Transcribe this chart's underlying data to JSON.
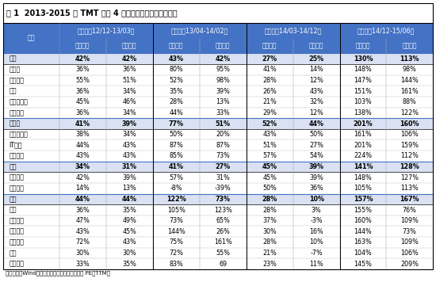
{
  "title": "表 1  2013-2015 年 TMT 板块 4 段行情中估值、盈利的贡献",
  "footnote": "资料来源：Wind，海通证券研究所，注：估值为 PE（TTM）",
  "periods": [
    "第一段（12/12-13/03）",
    "第二段（13/04-14/02）",
    "第三段（14/03-14/12）",
    "第四段（14/12-15/06）"
  ],
  "sub_labels": [
    "指数涨幅",
    "估值涨幅"
  ],
  "rows": [
    {
      "name": "电子",
      "bold": true,
      "shaded": true,
      "values": [
        "42%",
        "42%",
        "43%",
        "42%",
        "27%",
        "25%",
        "130%",
        "113%"
      ]
    },
    {
      "name": "半导体",
      "bold": false,
      "shaded": false,
      "values": [
        "36%",
        "36%",
        "80%",
        "95%",
        "41%",
        "14%",
        "148%",
        "98%"
      ]
    },
    {
      "name": "其他电子",
      "bold": false,
      "shaded": false,
      "values": [
        "55%",
        "51%",
        "52%",
        "98%",
        "28%",
        "12%",
        "147%",
        "144%"
      ]
    },
    {
      "name": "元件",
      "bold": false,
      "shaded": false,
      "values": [
        "36%",
        "34%",
        "35%",
        "39%",
        "26%",
        "43%",
        "151%",
        "161%"
      ]
    },
    {
      "name": "光学光电子",
      "bold": false,
      "shaded": false,
      "values": [
        "45%",
        "46%",
        "28%",
        "13%",
        "21%",
        "32%",
        "103%",
        "88%"
      ]
    },
    {
      "name": "消费电子",
      "bold": false,
      "shaded": false,
      "values": [
        "36%",
        "34%",
        "44%",
        "33%",
        "29%",
        "12%",
        "138%",
        "122%"
      ]
    },
    {
      "name": "计算机",
      "bold": true,
      "shaded": true,
      "values": [
        "41%",
        "39%",
        "77%",
        "51%",
        "52%",
        "44%",
        "201%",
        "160%"
      ]
    },
    {
      "name": "计算机设备",
      "bold": false,
      "shaded": false,
      "values": [
        "38%",
        "34%",
        "50%",
        "20%",
        "43%",
        "50%",
        "161%",
        "106%"
      ]
    },
    {
      "name": "IT服务",
      "bold": false,
      "shaded": false,
      "values": [
        "44%",
        "43%",
        "87%",
        "87%",
        "51%",
        "27%",
        "201%",
        "159%"
      ]
    },
    {
      "name": "软件开发",
      "bold": false,
      "shaded": false,
      "values": [
        "43%",
        "43%",
        "85%",
        "73%",
        "57%",
        "54%",
        "224%",
        "112%"
      ]
    },
    {
      "name": "通信",
      "bold": true,
      "shaded": true,
      "values": [
        "34%",
        "31%",
        "41%",
        "27%",
        "45%",
        "39%",
        "141%",
        "128%"
      ]
    },
    {
      "name": "通信设备",
      "bold": false,
      "shaded": false,
      "values": [
        "42%",
        "39%",
        "57%",
        "31%",
        "45%",
        "39%",
        "148%",
        "127%"
      ]
    },
    {
      "name": "通信服务",
      "bold": false,
      "shaded": false,
      "values": [
        "14%",
        "13%",
        "-8%",
        "-39%",
        "50%",
        "36%",
        "105%",
        "113%"
      ]
    },
    {
      "name": "传媒",
      "bold": true,
      "shaded": true,
      "values": [
        "44%",
        "44%",
        "122%",
        "73%",
        "28%",
        "10%",
        "157%",
        "167%"
      ]
    },
    {
      "name": "游戏",
      "bold": false,
      "shaded": false,
      "values": [
        "36%",
        "35%",
        "105%",
        "123%",
        "28%",
        "3%",
        "155%",
        "76%"
      ]
    },
    {
      "name": "广告营销",
      "bold": false,
      "shaded": false,
      "values": [
        "47%",
        "49%",
        "73%",
        "65%",
        "37%",
        "-3%",
        "160%",
        "109%"
      ]
    },
    {
      "name": "影视院线",
      "bold": false,
      "shaded": false,
      "values": [
        "43%",
        "45%",
        "144%",
        "26%",
        "30%",
        "16%",
        "144%",
        "73%"
      ]
    },
    {
      "name": "数字媒体",
      "bold": false,
      "shaded": false,
      "values": [
        "72%",
        "43%",
        "75%",
        "161%",
        "28%",
        "10%",
        "163%",
        "109%"
      ]
    },
    {
      "name": "出版",
      "bold": false,
      "shaded": false,
      "values": [
        "30%",
        "30%",
        "72%",
        "55%",
        "21%",
        "-7%",
        "104%",
        "106%"
      ]
    },
    {
      "name": "电视广播",
      "bold": false,
      "shaded": false,
      "values": [
        "33%",
        "35%",
        "83%",
        "69",
        "23%",
        "11%",
        "145%",
        "209%"
      ]
    }
  ],
  "header_bg": "#4472C4",
  "header_text": "#FFFFFF",
  "shaded_bg": "#D9E1F2",
  "normal_bg": "#FFFFFF",
  "section_line_color": "#4472C4",
  "title_fontsize": 7.0,
  "header_fontsize": 5.8,
  "sublabel_fontsize": 5.5,
  "data_fontsize": 5.8,
  "footnote_fontsize": 5.0
}
